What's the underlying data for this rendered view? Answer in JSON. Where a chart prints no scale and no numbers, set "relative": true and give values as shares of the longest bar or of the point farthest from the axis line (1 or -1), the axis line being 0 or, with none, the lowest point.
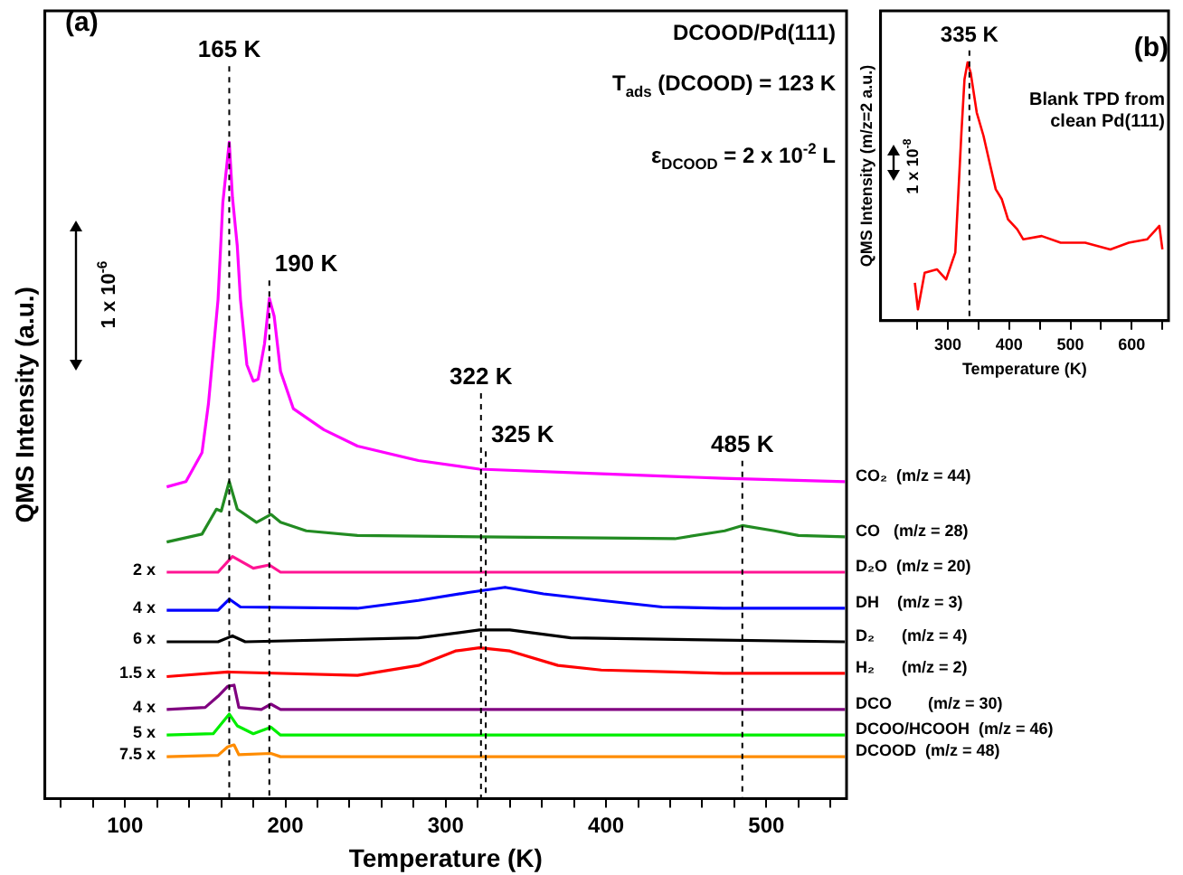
{
  "chart_data": [
    {
      "type": "line",
      "relative": true,
      "xlabel": "Temperature (K)",
      "ylabel": "QMS Intensity (a.u.)",
      "xlim": [
        50,
        550
      ],
      "xticks": [
        {
          "value": 60,
          "label": null
        },
        {
          "value": 80,
          "label": null
        },
        100,
        {
          "value": 120,
          "label": null
        },
        {
          "value": 140,
          "label": null
        },
        {
          "value": 160,
          "label": null
        },
        {
          "value": 180,
          "label": null
        },
        200,
        {
          "value": 220,
          "label": null
        },
        {
          "value": 240,
          "label": null
        },
        {
          "value": 260,
          "label": null
        },
        {
          "value": 280,
          "label": null
        },
        300,
        {
          "value": 320,
          "label": null
        },
        {
          "value": 340,
          "label": null
        },
        {
          "value": 360,
          "label": null
        },
        {
          "value": 380,
          "label": null
        },
        400,
        {
          "value": 420,
          "label": null
        },
        {
          "value": 440,
          "label": null
        },
        {
          "value": 460,
          "label": null
        },
        {
          "value": 480,
          "label": null
        },
        500,
        {
          "value": 520,
          "label": null
        },
        {
          "value": 540,
          "label": null
        }
      ],
      "series": [
        {
          "name": "CO₂  (m/z = 44)",
          "color": "#ff00ff",
          "x": [
            126,
            138,
            148,
            152,
            158,
            161,
            165,
            167,
            170,
            172,
            176,
            180,
            183,
            187,
            190,
            193,
            197,
            205,
            224,
            245,
            283,
            321,
            397,
            473,
            549
          ],
          "values": [
            0.475,
            0.483,
            0.527,
            0.601,
            0.76,
            0.908,
            1,
            0.916,
            0.842,
            0.76,
            0.661,
            0.636,
            0.639,
            0.693,
            0.762,
            0.735,
            0.651,
            0.594,
            0.562,
            0.537,
            0.515,
            0.502,
            0.495,
            0.488,
            0.483
          ]
        },
        {
          "name": "CO   (m/z = 28)",
          "color": "#228b22",
          "x": [
            126,
            148,
            157,
            160,
            165,
            170,
            182,
            191,
            197,
            213,
            245,
            321,
            443,
            474,
            485,
            505,
            520,
            549
          ],
          "values": [
            0.391,
            0.403,
            0.441,
            0.438,
            0.483,
            0.441,
            0.421,
            0.433,
            0.421,
            0.408,
            0.401,
            0.399,
            0.396,
            0.408,
            0.416,
            0.408,
            0.401,
            0.399
          ]
        },
        {
          "name": "D₂O  (m/z = 20)",
          "color": "#ff1493",
          "x": [
            126,
            158,
            167,
            180,
            190,
            197,
            549
          ],
          "values": [
            0.345,
            0.345,
            0.369,
            0.351,
            0.356,
            0.345,
            0.345
          ]
        },
        {
          "name": "DH    (m/z = 3)",
          "color": "#0000ff",
          "x": [
            126,
            158,
            165,
            172,
            245,
            283,
            314,
            337,
            361,
            397,
            435,
            473,
            549
          ],
          "values": [
            0.287,
            0.287,
            0.304,
            0.292,
            0.29,
            0.302,
            0.314,
            0.322,
            0.312,
            0.302,
            0.292,
            0.29,
            0.29
          ]
        },
        {
          "name": "D₂      (m/z = 4)",
          "color": "#000000",
          "x": [
            126,
            158,
            167,
            175,
            283,
            321,
            340,
            378,
            549
          ],
          "values": [
            0.239,
            0.239,
            0.248,
            0.239,
            0.245,
            0.257,
            0.257,
            0.245,
            0.239
          ]
        },
        {
          "name": "H₂      (m/z = 2)",
          "color": "#ff0000",
          "x": [
            126,
            164,
            245,
            283,
            306,
            321,
            340,
            370,
            397,
            473,
            549
          ],
          "values": [
            0.186,
            0.193,
            0.188,
            0.203,
            0.225,
            0.23,
            0.225,
            0.203,
            0.196,
            0.191,
            0.191
          ]
        },
        {
          "name": "DCO        (m/z = 30)",
          "color": "#800080",
          "x": [
            126,
            150,
            158,
            164,
            168,
            171,
            185,
            191,
            197,
            549
          ],
          "values": [
            0.136,
            0.139,
            0.156,
            0.171,
            0.173,
            0.139,
            0.136,
            0.144,
            0.136,
            0.136
          ]
        },
        {
          "name": "DCOO/HCOOH  (m/z = 46)",
          "color": "#00ee00",
          "x": [
            126,
            155,
            165,
            170,
            180,
            191,
            197,
            549
          ],
          "values": [
            0.097,
            0.099,
            0.129,
            0.111,
            0.099,
            0.109,
            0.097,
            0.097
          ]
        },
        {
          "name": "DCOOD  (m/z = 48)",
          "color": "#ff8c00",
          "x": [
            126,
            158,
            164,
            168,
            171,
            191,
            197,
            549
          ],
          "values": [
            0.064,
            0.066,
            0.079,
            0.082,
            0.067,
            0.069,
            0.064,
            0.064
          ]
        }
      ],
      "ref_lines": [
        {
          "axis": "x",
          "value": 165,
          "label": "165 K",
          "color": "#000000",
          "line_style": "dashed"
        },
        {
          "axis": "x",
          "value": 190,
          "label": "190 K",
          "color": "#000000",
          "line_style": "dashed"
        },
        {
          "axis": "x",
          "value": 322,
          "label": "322 K",
          "color": "#000000",
          "line_style": "dashed"
        },
        {
          "axis": "x",
          "value": 325,
          "label": "325 K",
          "color": "#000000",
          "line_style": "dashed"
        },
        {
          "axis": "x",
          "value": 485,
          "label": "485 K",
          "color": "#000000",
          "line_style": "dashed"
        }
      ],
      "annotations": [
        "(a)",
        "DCOOD/Pd(111)",
        "T$_{ads}$ (DCOOD) = 123 K",
        "ε$_{DCOOD}$  = 2 x 10$^{-2}$ L",
        "1 x 10$^{-6}$",
        "2 x",
        "4 x",
        "6 x",
        "1.5 x",
        "4 x",
        "5 x",
        "7.5 x"
      ]
    },
    {
      "type": "line",
      "relative": true,
      "xlabel": "Temperature (K)",
      "ylabel": "QMS Intensity (m/z=2 a.u.)",
      "xlim": [
        190,
        660
      ],
      "xticks": [
        {
          "value": 250,
          "label": null
        },
        300,
        {
          "value": 350,
          "label": null
        },
        400,
        {
          "value": 450,
          "label": null
        },
        500,
        {
          "value": 550,
          "label": null
        },
        600,
        {
          "value": 650,
          "label": null
        }
      ],
      "series": [
        {
          "color": "#ff0000",
          "x": [
            246,
            251,
            262,
            282,
            297,
            312,
            317,
            322,
            327,
            332,
            337,
            347,
            358,
            368,
            378,
            388,
            398,
            413,
            423,
            453,
            484,
            524,
            565,
            595,
            625,
            645,
            650
          ],
          "values": [
            0.147,
            0.044,
            0.186,
            0.199,
            0.16,
            0.264,
            0.496,
            0.729,
            0.935,
            1,
            0.961,
            0.806,
            0.716,
            0.612,
            0.509,
            0.47,
            0.393,
            0.354,
            0.315,
            0.328,
            0.302,
            0.302,
            0.276,
            0.302,
            0.315,
            0.367,
            0.276
          ]
        }
      ],
      "ref_lines": [
        {
          "axis": "x",
          "value": 335,
          "label": "335 K",
          "color": "#000000",
          "line_style": "dashed"
        }
      ],
      "annotations": [
        "(b)",
        "Blank TPD from clean Pd(111)",
        "1 x 10$^{-8}$"
      ]
    }
  ]
}
